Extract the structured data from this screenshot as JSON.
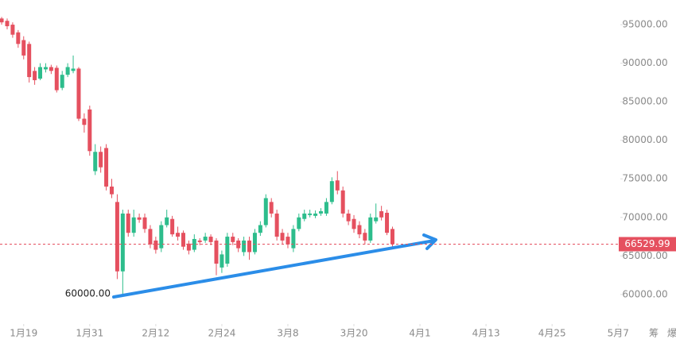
{
  "chart_data": {
    "type": "candlestick",
    "x": [
      15,
      16,
      17,
      18,
      19,
      20,
      21,
      22,
      23,
      24,
      25,
      26,
      27,
      28,
      29,
      30,
      31,
      32,
      33,
      34,
      35,
      36,
      37,
      38,
      39,
      40,
      41,
      42,
      43,
      44,
      45,
      46,
      47,
      48,
      49,
      50,
      51,
      52,
      53,
      54,
      55,
      56,
      57,
      58,
      59,
      60,
      61,
      62,
      63,
      64,
      65,
      66,
      67,
      68,
      69,
      70,
      71,
      72,
      73,
      74,
      75,
      76,
      77,
      78,
      79,
      80,
      81,
      82,
      83,
      84,
      85,
      86
    ],
    "open": [
      95800,
      95500,
      95000,
      94000,
      93000,
      92500,
      89000,
      88000,
      89200,
      89500,
      89400,
      86800,
      88500,
      89000,
      89300,
      82800,
      84000,
      76000,
      78500,
      79000,
      74000,
      72000,
      63000,
      70500,
      68000,
      70000,
      70000,
      68500,
      67000,
      66000,
      69000,
      69800,
      68000,
      68000,
      66600,
      65800,
      67000,
      67000,
      67500,
      67000,
      63500,
      64000,
      67500,
      67000,
      65500,
      67000,
      65500,
      68000,
      69000,
      72000,
      70500,
      68000,
      67500,
      66000,
      68500,
      69800,
      70300,
      70200,
      70500,
      70500,
      72000,
      74800,
      73500,
      70500,
      69800,
      69000,
      68000,
      67000,
      69500,
      70800,
      70600,
      68500
    ],
    "high": [
      96000,
      95800,
      95300,
      94300,
      93500,
      92800,
      89500,
      90000,
      90000,
      89800,
      89700,
      89000,
      90000,
      91000,
      89500,
      83500,
      84500,
      79500,
      79200,
      79500,
      75000,
      73000,
      71000,
      71000,
      71000,
      70500,
      70500,
      69000,
      67500,
      69500,
      71000,
      70200,
      68800,
      68300,
      67000,
      67800,
      67300,
      68000,
      67800,
      67300,
      65700,
      68000,
      68000,
      67300,
      67500,
      67500,
      68500,
      69500,
      73000,
      72500,
      71000,
      68500,
      68000,
      69000,
      70500,
      71000,
      71000,
      70900,
      71200,
      72500,
      75200,
      76000,
      74000,
      71000,
      70300,
      69500,
      68500,
      70500,
      71800,
      71500,
      71000,
      68800
    ],
    "low": [
      95000,
      94400,
      93300,
      92000,
      90500,
      87500,
      87200,
      87800,
      88800,
      88600,
      86200,
      86500,
      88200,
      88700,
      82500,
      81000,
      78000,
      75500,
      75800,
      73500,
      72500,
      62000,
      60000,
      67500,
      67500,
      69300,
      68000,
      66000,
      65300,
      65500,
      68700,
      67500,
      67000,
      65800,
      65200,
      65500,
      66400,
      66700,
      66400,
      62500,
      62800,
      63600,
      66400,
      65500,
      65000,
      64500,
      65200,
      67600,
      68700,
      70000,
      67000,
      66500,
      66000,
      65500,
      68200,
      69500,
      70000,
      69900,
      70200,
      70200,
      71700,
      73000,
      70000,
      69000,
      68000,
      67300,
      66500,
      66700,
      69200,
      69600,
      67700,
      66000
    ],
    "close": [
      95300,
      94800,
      93700,
      92500,
      91000,
      88200,
      87800,
      89500,
      89500,
      89000,
      86500,
      88500,
      89500,
      89300,
      82800,
      82000,
      78600,
      78500,
      76500,
      74000,
      73000,
      63000,
      70500,
      68000,
      70000,
      69700,
      68500,
      66500,
      65800,
      69000,
      70000,
      67800,
      67500,
      66200,
      65700,
      67200,
      66800,
      67500,
      66800,
      64000,
      65200,
      67500,
      66800,
      66000,
      67000,
      65500,
      68000,
      69000,
      72500,
      70500,
      67500,
      67000,
      66500,
      68500,
      70000,
      70500,
      70500,
      70500,
      70800,
      72000,
      74700,
      73500,
      70500,
      69500,
      68500,
      67800,
      67000,
      70000,
      70000,
      70000,
      68000,
      66530
    ],
    "up_color": "#2dbd8c",
    "down_color": "#e5505f",
    "current_price": 66529.99,
    "current_price_label": "66529.99",
    "current_price_color": "#e5505f",
    "annotations": [
      {
        "text": "60000.00"
      }
    ],
    "xlim": [
      14.7,
      127.4
    ],
    "xticks": [
      {
        "value": 19,
        "label": "1月19"
      },
      {
        "value": 31,
        "label": "1月31"
      },
      {
        "value": 43,
        "label": "2月12"
      },
      {
        "value": 55,
        "label": "2月24"
      },
      {
        "value": 67,
        "label": "3月8"
      },
      {
        "value": 79,
        "label": "3月20"
      },
      {
        "value": 91,
        "label": "4月1"
      },
      {
        "value": 103,
        "label": "4月13"
      },
      {
        "value": 115,
        "label": "4月25"
      },
      {
        "value": 127,
        "label": "5月7"
      }
    ],
    "ylim": [
      57000,
      98200
    ],
    "yticks": [
      {
        "value": 60000,
        "label": "60000.00"
      },
      {
        "value": 65000,
        "label": "65000.00"
      },
      {
        "value": 70000,
        "label": "70000.00"
      },
      {
        "value": 75000,
        "label": "75000.00"
      },
      {
        "value": 80000,
        "label": "80000.00"
      },
      {
        "value": 85000,
        "label": "85000.00"
      },
      {
        "value": 90000,
        "label": "90000.00"
      },
      {
        "value": 95000,
        "label": "95000.00"
      }
    ],
    "grid": false,
    "bottom_buttons": [
      "筹",
      "爆"
    ]
  }
}
